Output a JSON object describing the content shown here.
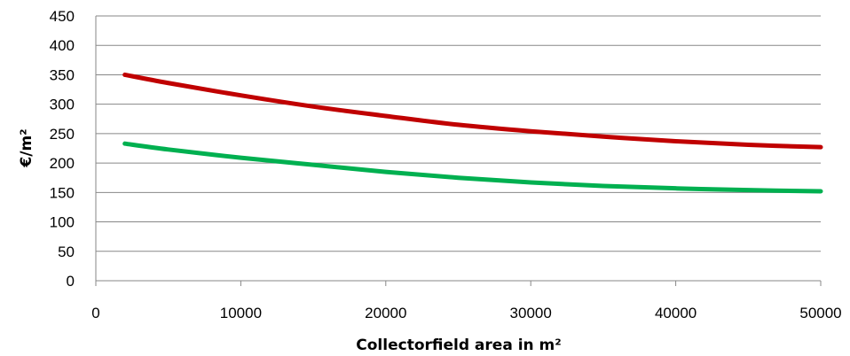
{
  "chart_data": {
    "type": "line",
    "title": "",
    "xlabel": "Collectorfield area in m²",
    "ylabel": "€/m²",
    "xlim": [
      0,
      50000
    ],
    "ylim": [
      0,
      450
    ],
    "xticks": [
      "0",
      "10000",
      "20000",
      "30000",
      "40000",
      "50000"
    ],
    "yticks": [
      "0",
      "50",
      "100",
      "150",
      "200",
      "250",
      "300",
      "350",
      "400",
      "450"
    ],
    "grid": true,
    "legend": "none",
    "series": [
      {
        "color": "#c00000",
        "x": [
          2000,
          5000,
          10000,
          15000,
          20000,
          25000,
          30000,
          35000,
          40000,
          45000,
          50000
        ],
        "y": [
          350,
          336,
          315,
          296,
          280,
          265,
          254,
          245,
          237,
          231,
          227
        ]
      },
      {
        "color": "#00b050",
        "x": [
          2000,
          5000,
          10000,
          15000,
          20000,
          25000,
          30000,
          35000,
          40000,
          45000,
          50000
        ],
        "y": [
          233,
          223,
          209,
          197,
          185,
          175,
          167,
          161,
          157,
          154,
          152
        ]
      }
    ]
  }
}
